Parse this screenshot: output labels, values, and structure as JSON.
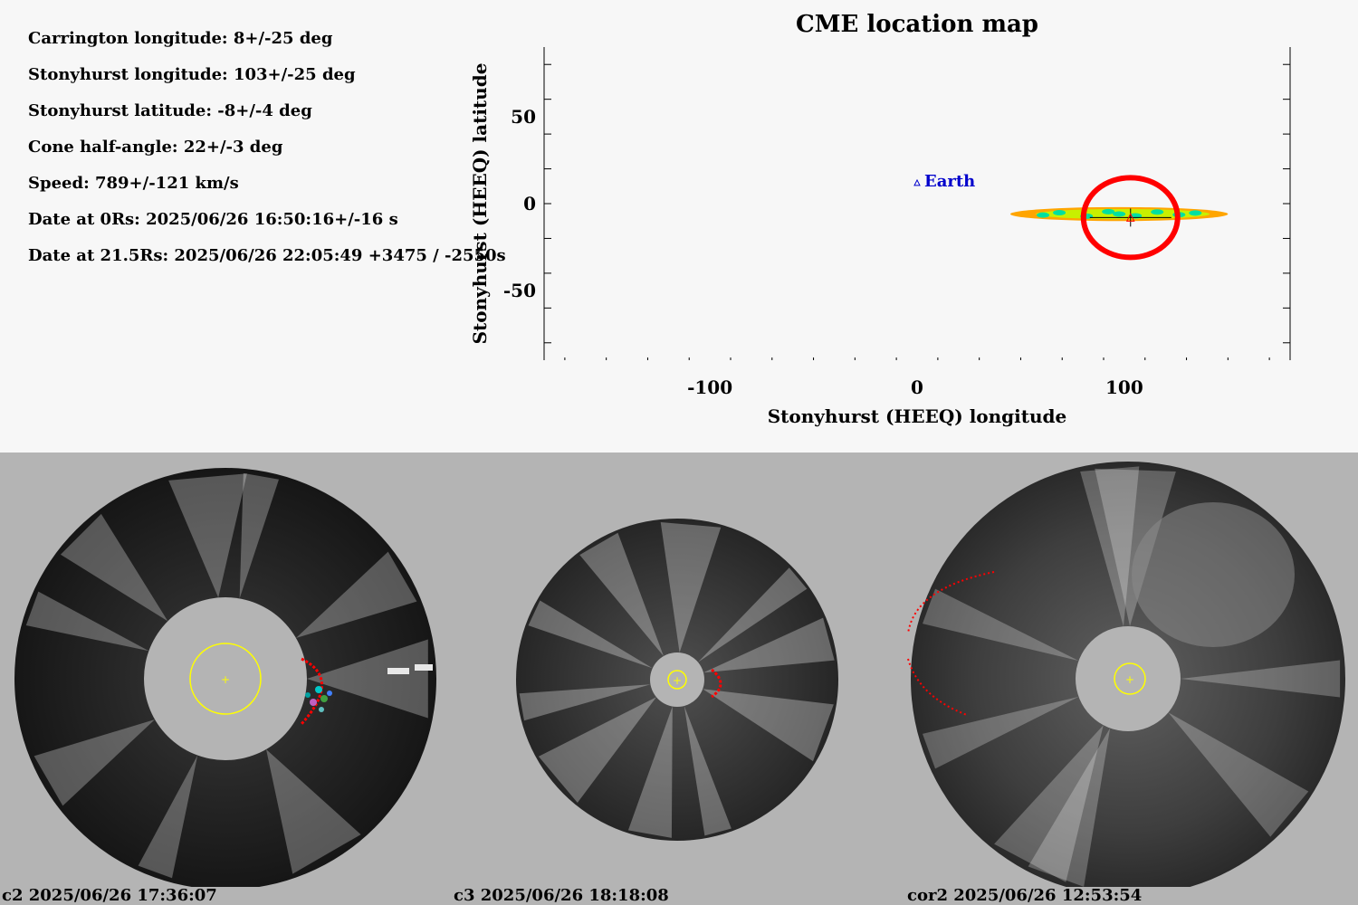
{
  "params": [
    "Carrington longitude: 8+/-25 deg",
    "Stonyhurst longitude: 103+/-25 deg",
    "Stonyhurst latitude: -8+/-4 deg",
    "Cone half-angle: 22+/-3 deg",
    "Speed: 789+/-121 km/s",
    "Date at 0Rs: 2025/06/26 16:50:16+/-16 s",
    "Date at 21.5Rs: 2025/06/26 22:05:49 +3475 / -2550s"
  ],
  "chart_data": {
    "type": "scatter",
    "title": "CME location map",
    "xlabel": "Stonyhurst (HEEQ) longitude",
    "ylabel": "Stonyhurst (HEEQ) latitude",
    "xlim": [
      -180,
      180
    ],
    "ylim": [
      -90,
      90
    ],
    "xticks": [
      -100,
      0,
      100
    ],
    "yticks": [
      -50,
      0,
      50
    ],
    "earth": {
      "label": "Earth",
      "lon": 0,
      "lat": 12
    },
    "cme_center": {
      "lon": 103,
      "lat": -8
    },
    "cme_extent": {
      "lon_min": 45,
      "lon_max": 150,
      "lat_min": -10,
      "lat_max": -2
    },
    "colors": {
      "earth": "#0000cc",
      "circle": "#ff0000",
      "outer": "#ffa500",
      "middle": "#c8f000",
      "inner": "#00e0a0"
    }
  },
  "coronagraphs": [
    {
      "caption": "c2 2025/06/26 17:36:07"
    },
    {
      "caption": "c3 2025/06/26 18:18:08"
    },
    {
      "caption": "cor2 2025/06/26 12:53:54"
    }
  ]
}
